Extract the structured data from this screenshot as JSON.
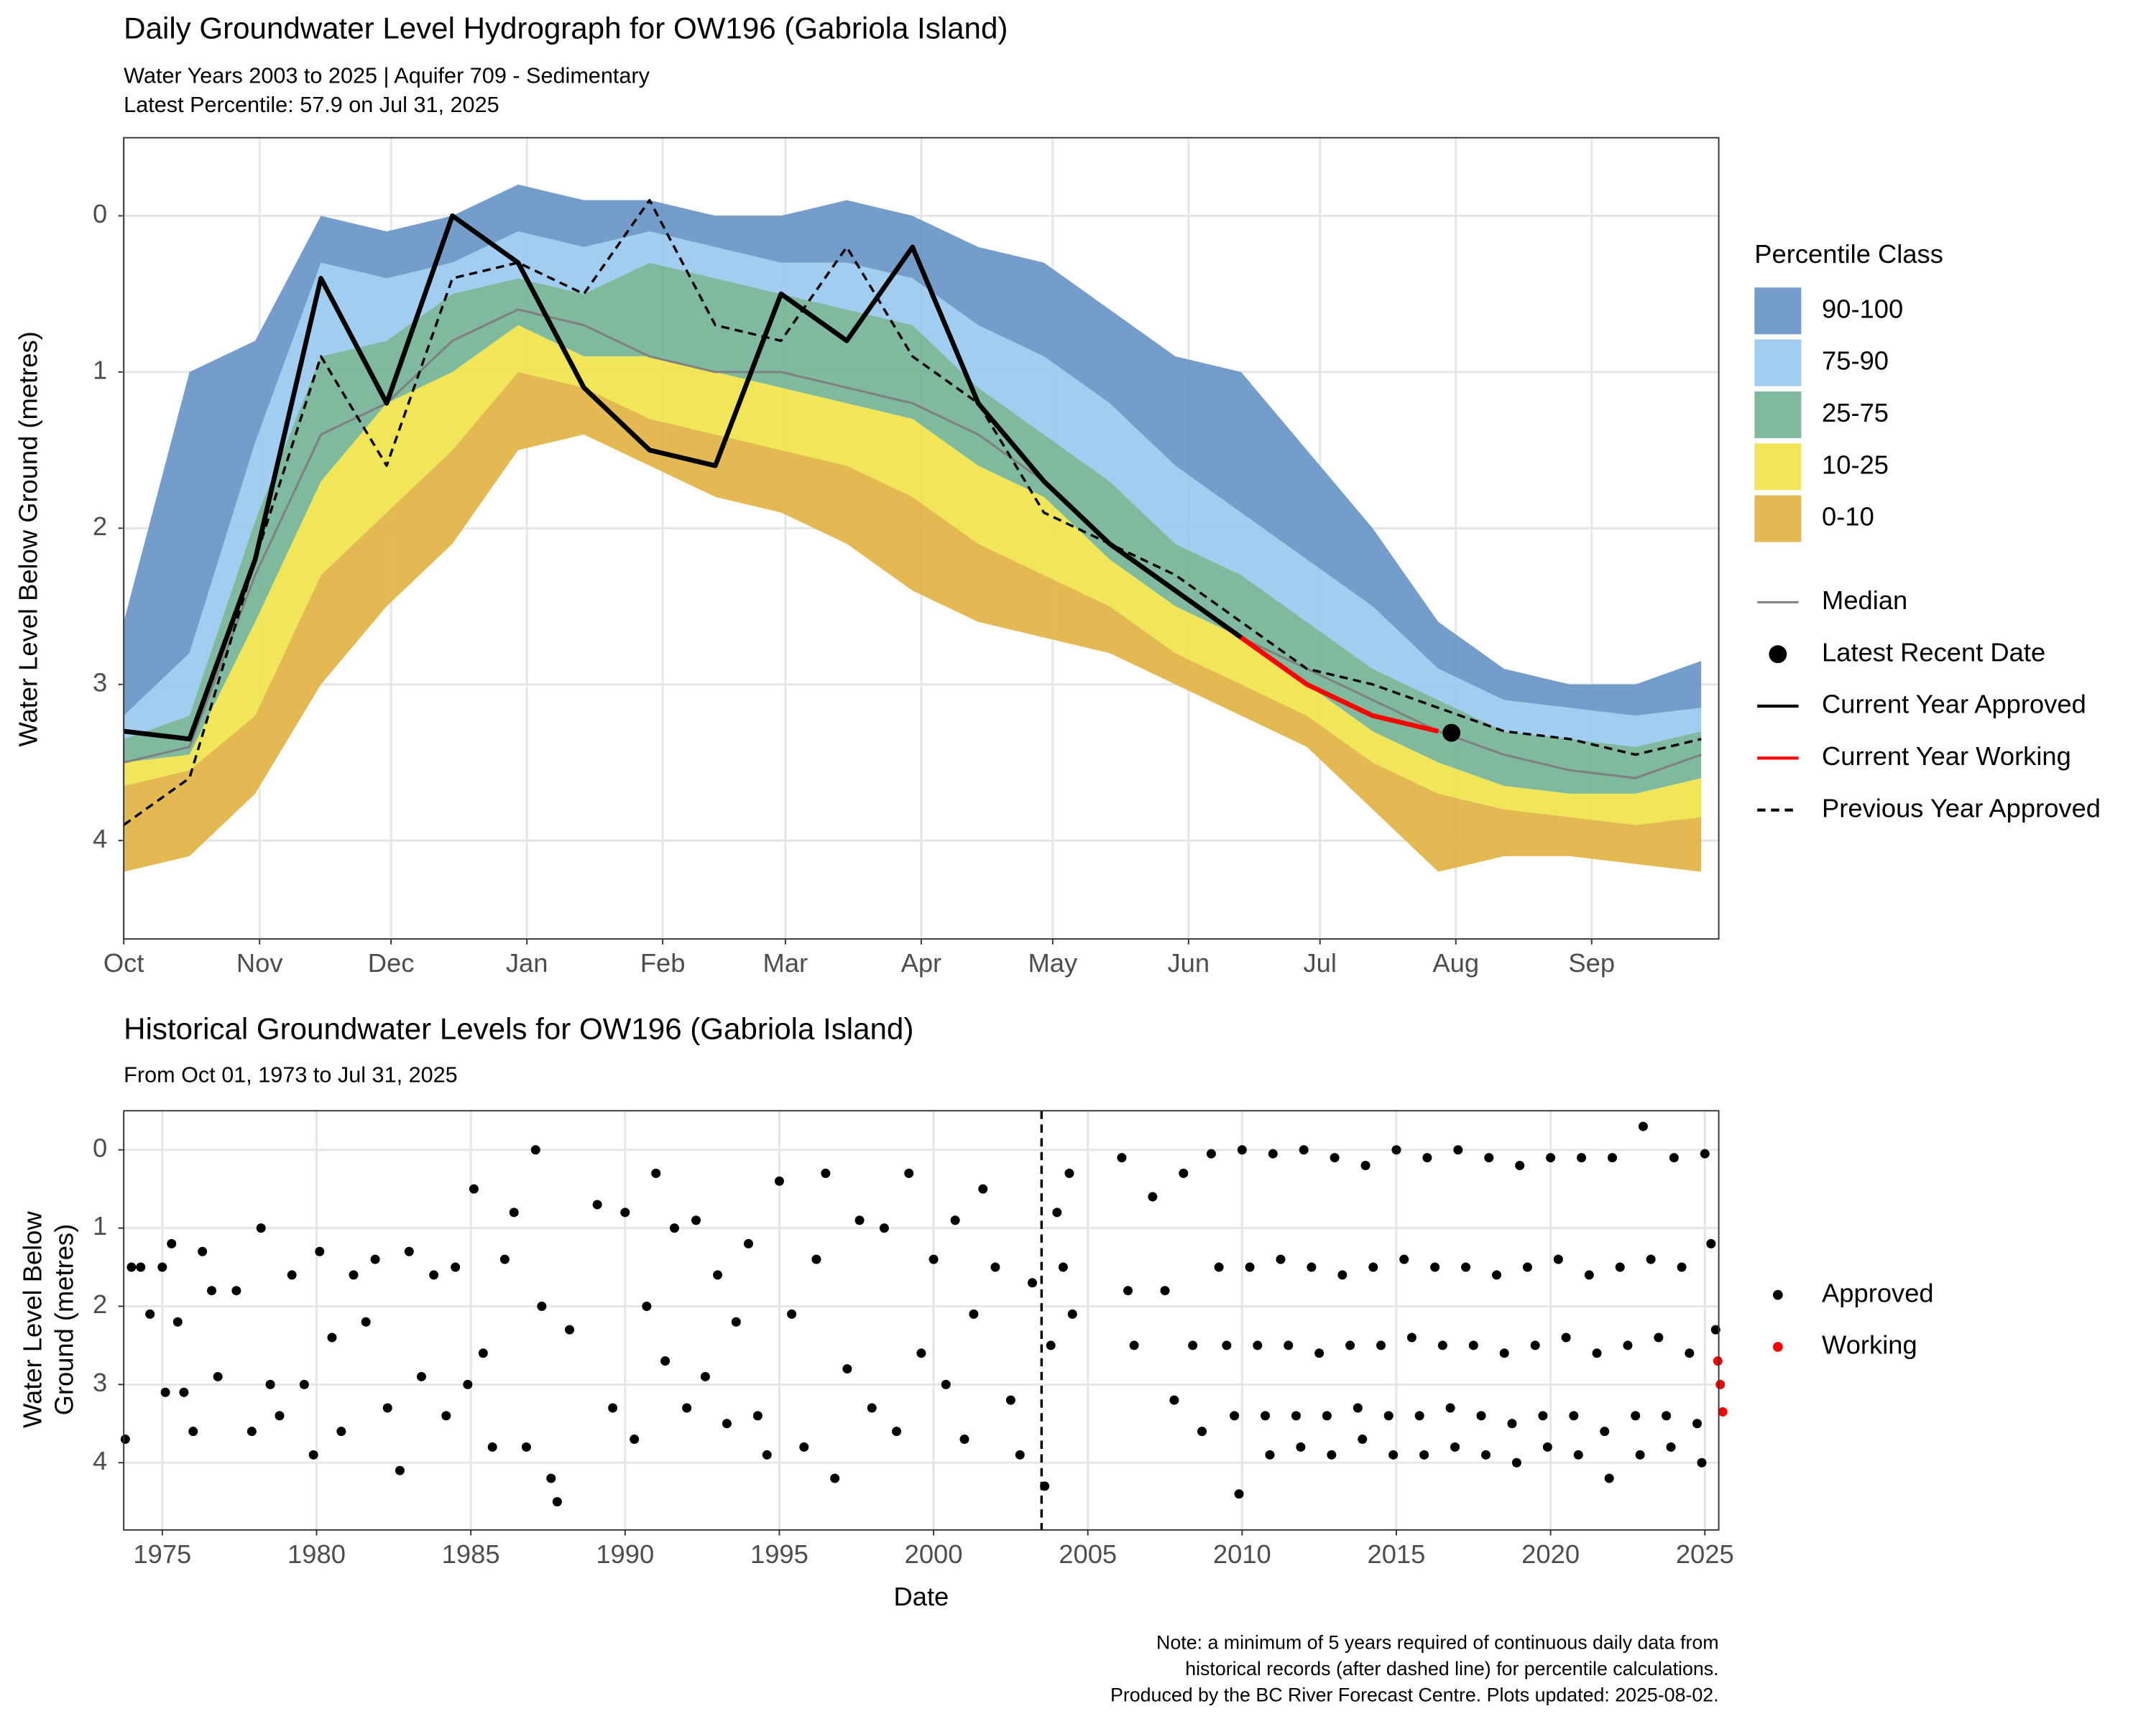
{
  "chart_data": [
    {
      "type": "percentile_bands",
      "title": "Daily Groundwater Level Hydrograph for OW196 (Gabriola Island)",
      "subtitle": [
        "Water Years 2003 to 2025 | Aquifer 709 - Sedimentary",
        "Latest Percentile: 57.9 on Jul 31, 2025"
      ],
      "y_label": "Water Level Below Ground (metres)",
      "xlim": [
        0,
        364
      ],
      "ylim": [
        4.63,
        -0.5
      ],
      "xticks": [
        {
          "value": 0,
          "label": "Oct"
        },
        {
          "value": 31,
          "label": "Nov"
        },
        {
          "value": 61,
          "label": "Dec"
        },
        {
          "value": 92,
          "label": "Jan"
        },
        {
          "value": 123,
          "label": "Feb"
        },
        {
          "value": 151,
          "label": "Mar"
        },
        {
          "value": 182,
          "label": "Apr"
        },
        {
          "value": 212,
          "label": "May"
        },
        {
          "value": 243,
          "label": "Jun"
        },
        {
          "value": 273,
          "label": "Jul"
        },
        {
          "value": 304,
          "label": "Aug"
        },
        {
          "value": 335,
          "label": "Sep"
        }
      ],
      "yticks": [
        0,
        1,
        2,
        3,
        4
      ],
      "grid": true,
      "x": [
        0,
        15,
        30,
        45,
        60,
        75,
        90,
        105,
        120,
        135,
        150,
        165,
        180,
        195,
        210,
        225,
        240,
        255,
        270,
        285,
        300,
        315,
        330,
        345,
        360
      ],
      "percentile_levels": [
        [
          4.2,
          4.1,
          3.7,
          3.0,
          2.5,
          2.1,
          1.5,
          1.4,
          1.6,
          1.8,
          1.9,
          2.1,
          2.4,
          2.6,
          2.7,
          2.8,
          3.0,
          3.2,
          3.4,
          3.8,
          4.2,
          4.1,
          4.1,
          4.15,
          4.2
        ],
        [
          3.65,
          3.55,
          3.2,
          2.3,
          1.9,
          1.5,
          1.0,
          1.1,
          1.3,
          1.4,
          1.5,
          1.6,
          1.8,
          2.1,
          2.3,
          2.5,
          2.8,
          3.0,
          3.2,
          3.5,
          3.7,
          3.8,
          3.85,
          3.9,
          3.85
        ],
        [
          3.5,
          3.45,
          2.6,
          1.7,
          1.2,
          1.0,
          0.7,
          0.9,
          0.9,
          1.0,
          1.1,
          1.2,
          1.3,
          1.6,
          1.8,
          2.2,
          2.5,
          2.7,
          3.0,
          3.3,
          3.5,
          3.65,
          3.7,
          3.7,
          3.6
        ],
        [
          3.35,
          3.2,
          1.95,
          0.9,
          0.8,
          0.5,
          0.4,
          0.5,
          0.3,
          0.4,
          0.5,
          0.6,
          0.7,
          1.1,
          1.4,
          1.7,
          2.1,
          2.3,
          2.6,
          2.9,
          3.1,
          3.3,
          3.35,
          3.4,
          3.3
        ],
        [
          3.2,
          2.8,
          1.45,
          0.3,
          0.4,
          0.3,
          0.1,
          0.2,
          0.1,
          0.2,
          0.3,
          0.3,
          0.4,
          0.7,
          0.9,
          1.2,
          1.6,
          1.9,
          2.2,
          2.5,
          2.9,
          3.1,
          3.15,
          3.2,
          3.15
        ],
        [
          2.6,
          1.0,
          0.8,
          0.0,
          0.1,
          0.0,
          -0.2,
          -0.1,
          -0.1,
          0.0,
          0.0,
          -0.1,
          0.0,
          0.2,
          0.3,
          0.6,
          0.9,
          1.0,
          1.5,
          2.0,
          2.6,
          2.9,
          3.0,
          3.0,
          2.85
        ]
      ],
      "legend_title": "Percentile Class",
      "bands": [
        {
          "name": "0-10",
          "color": "#e1b13f"
        },
        {
          "name": "10-25",
          "color": "#f0e346"
        },
        {
          "name": "25-75",
          "color": "#72b394"
        },
        {
          "name": "75-90",
          "color": "#97c8ef"
        },
        {
          "name": "90-100",
          "color": "#6592c5"
        }
      ],
      "series": [
        {
          "name": "Median",
          "color": "#808080",
          "values": [
            3.5,
            3.4,
            2.3,
            1.4,
            1.2,
            0.8,
            0.6,
            0.7,
            0.9,
            1.0,
            1.0,
            1.1,
            1.2,
            1.4,
            1.7,
            2.1,
            2.4,
            2.7,
            2.9,
            3.1,
            3.3,
            3.45,
            3.55,
            3.6,
            3.45
          ]
        },
        {
          "name": "Current Year Approved",
          "color": "#000000",
          "values": [
            3.3,
            3.35,
            2.2,
            0.4,
            1.2,
            0.0,
            0.3,
            1.1,
            1.5,
            1.6,
            0.5,
            0.8,
            0.2,
            1.2,
            1.7,
            2.1,
            2.4,
            2.7,
            null,
            null,
            null,
            null,
            null,
            null,
            null
          ]
        },
        {
          "name": "Current Year Working",
          "color": "#ff0000",
          "values": [
            null,
            null,
            null,
            null,
            null,
            null,
            null,
            null,
            null,
            null,
            null,
            null,
            null,
            null,
            null,
            null,
            null,
            2.7,
            3.0,
            3.2,
            3.3,
            null,
            null,
            null,
            null
          ]
        },
        {
          "name": "Previous Year Approved",
          "color": "#000000",
          "dashed": true,
          "values": [
            3.9,
            3.6,
            2.2,
            0.9,
            1.6,
            0.4,
            0.3,
            0.5,
            -0.1,
            0.7,
            0.8,
            0.2,
            0.9,
            1.2,
            1.9,
            2.1,
            2.3,
            2.6,
            2.9,
            3.0,
            3.15,
            3.3,
            3.35,
            3.45,
            3.35
          ]
        }
      ],
      "latest": {
        "name": "Latest Recent Date",
        "x": 303,
        "value": 3.31,
        "color": "#000000"
      }
    },
    {
      "type": "scatter",
      "title": "Historical Groundwater Levels for OW196 (Gabriola Island)",
      "subtitle": "From Oct 01, 1973 to Jul 31, 2025",
      "y_label": [
        "Water Level Below",
        "Ground (metres)"
      ],
      "x_label": "Date",
      "xlim": [
        1973.75,
        2025.45
      ],
      "ylim": [
        4.86,
        -0.5
      ],
      "xticks": [
        1975,
        1980,
        1985,
        1990,
        1995,
        2000,
        2005,
        2010,
        2015,
        2020,
        2025
      ],
      "yticks": [
        0,
        1,
        2,
        3,
        4
      ],
      "grid": true,
      "divider_x": 2003.5,
      "series": [
        {
          "name": "Approved",
          "color": "#000000",
          "x": [
            1973.8,
            1974.0,
            1974.3,
            1974.6,
            1975.0,
            1975.1,
            1975.3,
            1975.5,
            1975.7,
            1976.0,
            1976.3,
            1976.6,
            1976.8,
            1977.4,
            1977.9,
            1978.2,
            1978.5,
            1978.8,
            1979.2,
            1979.6,
            1979.9,
            1980.1,
            1980.5,
            1980.8,
            1981.2,
            1981.6,
            1981.9,
            1982.3,
            1982.7,
            1983.0,
            1983.4,
            1983.8,
            1984.2,
            1984.5,
            1984.9,
            1985.1,
            1985.4,
            1985.7,
            1986.1,
            1986.4,
            1986.8,
            1987.1,
            1987.3,
            1987.6,
            1987.8,
            1988.2,
            1989.1,
            1989.6,
            1990.0,
            1990.3,
            1990.7,
            1991.0,
            1991.3,
            1991.6,
            1992.0,
            1992.3,
            1992.6,
            1993.0,
            1993.3,
            1993.6,
            1994.0,
            1994.3,
            1994.6,
            1995.0,
            1995.4,
            1995.8,
            1996.2,
            1996.5,
            1996.8,
            1997.2,
            1997.6,
            1998.0,
            1998.4,
            1998.8,
            1999.2,
            1999.6,
            2000.0,
            2000.4,
            2000.7,
            2001.0,
            2001.3,
            2001.6,
            2002.0,
            2002.5,
            2002.8,
            2003.2,
            2003.6,
            2003.8,
            2004.0,
            2004.2,
            2004.4,
            2004.5,
            2006.1,
            2006.3,
            2006.5,
            2007.1,
            2007.5,
            2007.8,
            2008.1,
            2008.4,
            2008.7,
            2009.0,
            2009.25,
            2009.5,
            2009.75,
            2009.9,
            2010.0,
            2010.25,
            2010.5,
            2010.75,
            2010.9,
            2011.0,
            2011.25,
            2011.5,
            2011.75,
            2011.9,
            2012.0,
            2012.25,
            2012.5,
            2012.75,
            2012.9,
            2013.0,
            2013.25,
            2013.5,
            2013.75,
            2013.9,
            2014.0,
            2014.25,
            2014.5,
            2014.75,
            2014.9,
            2015.0,
            2015.25,
            2015.5,
            2015.75,
            2015.9,
            2016.0,
            2016.25,
            2016.5,
            2016.75,
            2016.9,
            2017.0,
            2017.25,
            2017.5,
            2017.75,
            2017.9,
            2018.0,
            2018.25,
            2018.5,
            2018.75,
            2018.9,
            2019.0,
            2019.25,
            2019.5,
            2019.75,
            2019.9,
            2020.0,
            2020.25,
            2020.5,
            2020.75,
            2020.9,
            2021.0,
            2021.25,
            2021.5,
            2021.75,
            2021.9,
            2022.0,
            2022.25,
            2022.5,
            2022.75,
            2022.9,
            2023.0,
            2023.25,
            2023.5,
            2023.75,
            2023.9,
            2024.0,
            2024.25,
            2024.5,
            2024.75,
            2024.9,
            2025.0,
            2025.2,
            2025.35
          ],
          "values": [
            3.7,
            1.5,
            1.5,
            2.1,
            1.5,
            3.1,
            1.2,
            2.2,
            3.1,
            3.6,
            1.3,
            1.8,
            2.9,
            1.8,
            3.6,
            1.0,
            3.0,
            3.4,
            1.6,
            3.0,
            3.9,
            1.3,
            2.4,
            3.6,
            1.6,
            2.2,
            1.4,
            3.3,
            4.1,
            1.3,
            2.9,
            1.6,
            3.4,
            1.5,
            3.0,
            0.5,
            2.6,
            3.8,
            1.4,
            0.8,
            3.8,
            0.0,
            2.0,
            4.2,
            4.5,
            2.3,
            0.7,
            3.3,
            0.8,
            3.7,
            2.0,
            0.3,
            2.7,
            1.0,
            3.3,
            0.9,
            2.9,
            1.6,
            3.5,
            2.2,
            1.2,
            3.4,
            3.9,
            0.4,
            2.1,
            3.8,
            1.4,
            0.3,
            4.2,
            2.8,
            0.9,
            3.3,
            1.0,
            3.6,
            0.3,
            2.6,
            1.4,
            3.0,
            0.9,
            3.7,
            2.1,
            0.5,
            1.5,
            3.2,
            3.9,
            1.7,
            4.3,
            2.5,
            0.8,
            1.5,
            0.3,
            2.1,
            0.1,
            1.8,
            2.5,
            0.6,
            1.8,
            3.2,
            0.3,
            2.5,
            3.6,
            0.05,
            1.5,
            2.5,
            3.4,
            4.4,
            0.0,
            1.5,
            2.5,
            3.4,
            3.9,
            0.05,
            1.4,
            2.5,
            3.4,
            3.8,
            0.0,
            1.5,
            2.6,
            3.4,
            3.9,
            0.1,
            1.6,
            2.5,
            3.3,
            3.7,
            0.2,
            1.5,
            2.5,
            3.4,
            3.9,
            0.0,
            1.4,
            2.4,
            3.4,
            3.9,
            0.1,
            1.5,
            2.5,
            3.3,
            3.8,
            0.0,
            1.5,
            2.5,
            3.4,
            3.9,
            0.1,
            1.6,
            2.6,
            3.5,
            4.0,
            0.2,
            1.5,
            2.5,
            3.4,
            3.8,
            0.1,
            1.4,
            2.4,
            3.4,
            3.9,
            0.1,
            1.6,
            2.6,
            3.6,
            4.2,
            0.1,
            1.5,
            2.5,
            3.4,
            3.9,
            -0.3,
            1.4,
            2.4,
            3.4,
            3.8,
            0.1,
            1.5,
            2.6,
            3.5,
            4.0,
            0.05,
            1.2,
            2.3
          ]
        },
        {
          "name": "Working",
          "color": "#ff0000",
          "x": [
            2025.42,
            2025.5,
            2025.58
          ],
          "values": [
            2.7,
            3.0,
            3.35
          ]
        }
      ]
    }
  ],
  "note": [
    "Note: a minimum of 5 years required of continuous daily data from",
    "historical records (after dashed line) for percentile calculations.",
    "Produced by the BC River Forecast Centre. Plots updated: 2025-08-02."
  ]
}
